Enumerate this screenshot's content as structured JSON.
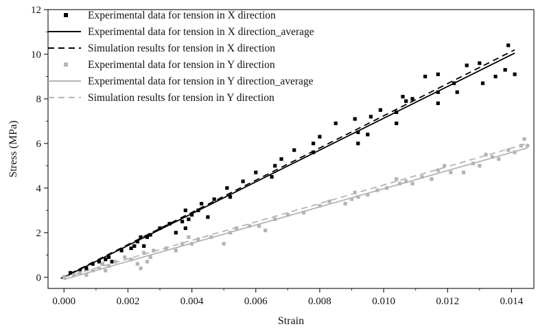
{
  "chart_data": {
    "type": "scatter",
    "title": "",
    "xlabel": "Strain",
    "ylabel": "Stress (MPa)",
    "xlim": [
      -0.0005,
      0.0147
    ],
    "ylim": [
      -0.5,
      12
    ],
    "xticks": [
      0.0,
      0.002,
      0.004,
      0.006,
      0.008,
      0.01,
      0.012,
      0.014
    ],
    "xtick_labels": [
      "0.000",
      "0.002",
      "0.004",
      "0.006",
      "0.008",
      "0.010",
      "0.012",
      "0.014"
    ],
    "yticks": [
      0,
      2,
      4,
      6,
      8,
      10,
      12
    ],
    "ytick_labels": [
      "0",
      "2",
      "4",
      "6",
      "8",
      "10",
      "12"
    ],
    "grid": false,
    "legend_position": "top-left",
    "series": [
      {
        "name": "Experimental data for tension in X direction",
        "kind": "scatter",
        "color": "#000000",
        "marker": "square",
        "points": [
          [
            0.0,
            0.0
          ],
          [
            0.0002,
            0.2
          ],
          [
            0.0005,
            0.3
          ],
          [
            0.0007,
            0.4
          ],
          [
            0.0009,
            0.6
          ],
          [
            0.0011,
            0.7
          ],
          [
            0.0012,
            0.6
          ],
          [
            0.0013,
            0.8
          ],
          [
            0.0014,
            0.9
          ],
          [
            0.0015,
            0.7
          ],
          [
            0.0018,
            1.2
          ],
          [
            0.0021,
            1.3
          ],
          [
            0.0022,
            1.4
          ],
          [
            0.0023,
            1.6
          ],
          [
            0.0024,
            1.8
          ],
          [
            0.0025,
            1.4
          ],
          [
            0.0026,
            1.8
          ],
          [
            0.0027,
            1.9
          ],
          [
            0.003,
            2.2
          ],
          [
            0.0033,
            2.4
          ],
          [
            0.0035,
            2.0
          ],
          [
            0.0037,
            2.5
          ],
          [
            0.0038,
            3.0
          ],
          [
            0.0038,
            2.2
          ],
          [
            0.0039,
            2.6
          ],
          [
            0.004,
            2.8
          ],
          [
            0.0042,
            3.0
          ],
          [
            0.0043,
            3.3
          ],
          [
            0.0045,
            2.7
          ],
          [
            0.0047,
            3.5
          ],
          [
            0.0051,
            4.0
          ],
          [
            0.0052,
            3.6
          ],
          [
            0.0056,
            4.3
          ],
          [
            0.006,
            4.7
          ],
          [
            0.0065,
            4.5
          ],
          [
            0.0066,
            5.0
          ],
          [
            0.0068,
            5.3
          ],
          [
            0.0072,
            5.7
          ],
          [
            0.0078,
            5.6
          ],
          [
            0.0078,
            6.0
          ],
          [
            0.008,
            6.3
          ],
          [
            0.0085,
            6.9
          ],
          [
            0.0091,
            7.1
          ],
          [
            0.0092,
            6.0
          ],
          [
            0.0092,
            6.5
          ],
          [
            0.0095,
            6.4
          ],
          [
            0.0096,
            7.2
          ],
          [
            0.0099,
            7.5
          ],
          [
            0.0104,
            6.9
          ],
          [
            0.0104,
            7.4
          ],
          [
            0.0106,
            8.1
          ],
          [
            0.0107,
            7.9
          ],
          [
            0.0109,
            8.0
          ],
          [
            0.0113,
            9.0
          ],
          [
            0.0117,
            7.8
          ],
          [
            0.0117,
            8.3
          ],
          [
            0.0117,
            9.1
          ],
          [
            0.0122,
            8.7
          ],
          [
            0.0123,
            8.3
          ],
          [
            0.0126,
            9.5
          ],
          [
            0.013,
            9.6
          ],
          [
            0.0131,
            8.7
          ],
          [
            0.0135,
            9.0
          ],
          [
            0.0138,
            9.3
          ],
          [
            0.0139,
            10.4
          ],
          [
            0.0141,
            9.1
          ]
        ]
      },
      {
        "name": "Experimental data for tension in X direction_average",
        "kind": "line",
        "color": "#000000",
        "dash": "solid",
        "points": [
          [
            0.0,
            0.0
          ],
          [
            0.0141,
            10.05
          ]
        ]
      },
      {
        "name": "Simulation results for tension in X direction",
        "kind": "line",
        "color": "#000000",
        "dash": "dashed",
        "points": [
          [
            -0.0001,
            -0.05
          ],
          [
            0.0141,
            10.2
          ]
        ]
      },
      {
        "name": "Experimental data for tension in Y direction",
        "kind": "scatter",
        "color": "#b4b4b4",
        "marker": "square",
        "points": [
          [
            0.0,
            0.0
          ],
          [
            0.0003,
            0.1
          ],
          [
            0.0005,
            0.2
          ],
          [
            0.0007,
            0.1
          ],
          [
            0.0009,
            0.3
          ],
          [
            0.0011,
            0.4
          ],
          [
            0.0012,
            0.6
          ],
          [
            0.0013,
            0.3
          ],
          [
            0.0014,
            0.5
          ],
          [
            0.0016,
            0.7
          ],
          [
            0.0019,
            0.9
          ],
          [
            0.0021,
            0.8
          ],
          [
            0.0023,
            0.6
          ],
          [
            0.0024,
            0.4
          ],
          [
            0.0025,
            1.1
          ],
          [
            0.0026,
            0.7
          ],
          [
            0.0027,
            0.9
          ],
          [
            0.0028,
            1.2
          ],
          [
            0.0032,
            1.3
          ],
          [
            0.0035,
            1.2
          ],
          [
            0.0037,
            1.5
          ],
          [
            0.0039,
            1.8
          ],
          [
            0.004,
            1.5
          ],
          [
            0.0042,
            1.7
          ],
          [
            0.0046,
            1.8
          ],
          [
            0.005,
            1.5
          ],
          [
            0.0052,
            2.0
          ],
          [
            0.0054,
            2.2
          ],
          [
            0.0058,
            2.3
          ],
          [
            0.0061,
            2.3
          ],
          [
            0.0063,
            2.1
          ],
          [
            0.0066,
            2.6
          ],
          [
            0.007,
            2.8
          ],
          [
            0.0075,
            2.9
          ],
          [
            0.008,
            3.2
          ],
          [
            0.0083,
            3.4
          ],
          [
            0.0088,
            3.3
          ],
          [
            0.009,
            3.5
          ],
          [
            0.0091,
            3.8
          ],
          [
            0.0092,
            3.6
          ],
          [
            0.0095,
            3.7
          ],
          [
            0.0098,
            3.9
          ],
          [
            0.0101,
            4.0
          ],
          [
            0.0104,
            4.4
          ],
          [
            0.0105,
            4.2
          ],
          [
            0.0107,
            4.3
          ],
          [
            0.0109,
            4.2
          ],
          [
            0.0112,
            4.5
          ],
          [
            0.0115,
            4.4
          ],
          [
            0.0117,
            4.8
          ],
          [
            0.0119,
            5.0
          ],
          [
            0.0121,
            4.7
          ],
          [
            0.0125,
            4.7
          ],
          [
            0.0128,
            5.1
          ],
          [
            0.013,
            5.0
          ],
          [
            0.0132,
            5.5
          ],
          [
            0.0134,
            5.4
          ],
          [
            0.0136,
            5.3
          ],
          [
            0.0139,
            5.7
          ],
          [
            0.0141,
            5.6
          ],
          [
            0.0143,
            5.9
          ],
          [
            0.0144,
            6.2
          ],
          [
            0.0145,
            5.9
          ]
        ]
      },
      {
        "name": "Experimental data for tension in Y direction_average",
        "kind": "line",
        "color": "#b4b4b4",
        "dash": "solid",
        "points": [
          [
            0.0,
            -0.1
          ],
          [
            0.0145,
            5.8
          ]
        ]
      },
      {
        "name": "Simulation results for tension in Y direction",
        "kind": "line",
        "color": "#b4b4b4",
        "dash": "dashed",
        "points": [
          [
            0.0,
            0.0
          ],
          [
            0.0145,
            6.0
          ]
        ]
      }
    ]
  }
}
